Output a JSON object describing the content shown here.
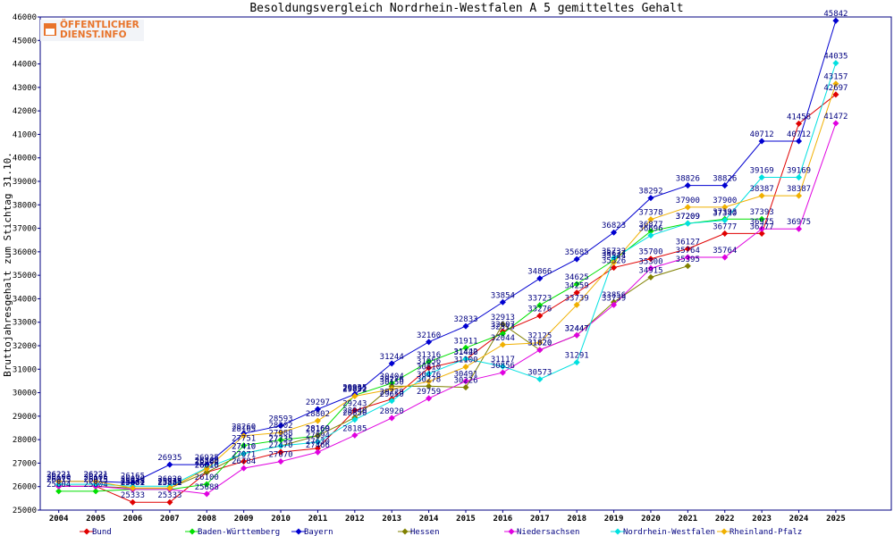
{
  "chart_data": {
    "type": "line",
    "title": "Besoldungsvergleich Nordrhein-Westfalen A 5 gemitteltes Gehalt",
    "xlabel": "",
    "ylabel": "Bruttojahresgehalt zum Stichtag 31.10.",
    "ylim": [
      25000,
      46000
    ],
    "yticks": [
      25000,
      26000,
      27000,
      28000,
      29000,
      30000,
      31000,
      32000,
      33000,
      34000,
      35000,
      36000,
      37000,
      38000,
      39000,
      40000,
      41000,
      42000,
      43000,
      44000,
      45000,
      46000
    ],
    "x": [
      2004,
      2005,
      2006,
      2007,
      2008,
      2009,
      2010,
      2011,
      2012,
      2013,
      2014,
      2015,
      2016,
      2017,
      2018,
      2019,
      2020,
      2021,
      2022,
      2023,
      2024,
      2025
    ],
    "grid": false,
    "legend_position": "bottom",
    "series": [
      {
        "name": "Bund",
        "color": "#e00000",
        "values": [
          26015,
          26015,
          25333,
          25333,
          26610,
          27071,
          27470,
          27630,
          29243,
          29729,
          31056,
          31420,
          32607,
          33276,
          34259,
          35326,
          35700,
          36127,
          36777,
          36777,
          41458,
          42697
        ]
      },
      {
        "name": "Baden-Württemberg",
        "color": "#00e000",
        "values": [
          25804,
          25804,
          25882,
          25882,
          26100,
          27751,
          27988,
          28160,
          29891,
          30404,
          31316,
          31911,
          32513,
          33723,
          34625,
          35637,
          36877,
          37209,
          37393,
          37393,
          null,
          null
        ]
      },
      {
        "name": "Bayern",
        "color": "#0000d0",
        "values": [
          26221,
          26221,
          26165,
          26935,
          26935,
          28260,
          28593,
          29297,
          29935,
          31244,
          32160,
          32833,
          33854,
          34866,
          35685,
          36823,
          38292,
          38826,
          38826,
          40712,
          40712,
          45842
        ]
      },
      {
        "name": "Hessen",
        "color": "#808000",
        "values": [
          26015,
          26015,
          25938,
          25938,
          26610,
          27410,
          27735,
          28169,
          28940,
          30276,
          30278,
          30226,
          32913,
          31820,
          32447,
          33856,
          34915,
          35395,
          null,
          null,
          null,
          null
        ]
      },
      {
        "name": "Niedersachsen",
        "color": "#e000e0",
        "values": [
          26015,
          26015,
          25881,
          25881,
          25688,
          26784,
          27070,
          27466,
          28185,
          28920,
          29759,
          30491,
          30856,
          31820,
          32447,
          33739,
          35300,
          35764,
          35764,
          36975,
          36975,
          41472
        ]
      },
      {
        "name": "Nordrhein-Westfalen",
        "color": "#00e0e0",
        "values": [
          26100,
          26105,
          26020,
          26020,
          26800,
          27410,
          27735,
          27894,
          28850,
          29650,
          30810,
          31442,
          31117,
          30573,
          31291,
          35732,
          36696,
          37209,
          37340,
          39169,
          39169,
          44035
        ]
      },
      {
        "name": "Rheinland-Pfalz",
        "color": "#f0b000",
        "values": [
          26221,
          26221,
          25938,
          25938,
          26760,
          28165,
          28302,
          28802,
          29852,
          30150,
          30476,
          31100,
          32044,
          32125,
          33739,
          35544,
          37378,
          37900,
          37900,
          38387,
          38387,
          43157
        ]
      }
    ]
  },
  "logo": {
    "line1": "ÖFFENTLICHER",
    "line2": "DIENST.INFO"
  }
}
